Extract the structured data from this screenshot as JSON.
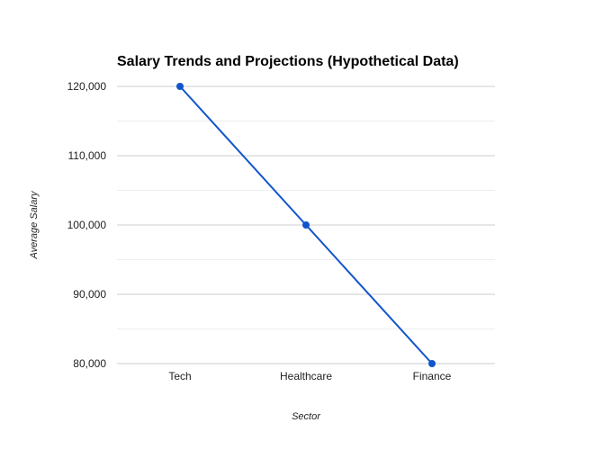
{
  "chart_data": {
    "type": "line",
    "title": "Salary Trends and Projections (Hypothetical Data)",
    "xlabel": "Sector",
    "ylabel": "Average Salary",
    "categories": [
      "Tech",
      "Healthcare",
      "Finance"
    ],
    "series": [
      {
        "values": [
          120000,
          100000,
          80000
        ]
      }
    ],
    "ylim": [
      80000,
      120000
    ],
    "y_ticks": [
      80000,
      90000,
      100000,
      110000,
      120000
    ],
    "y_tick_labels": [
      "80,000",
      "90,000",
      "100,000",
      "110,000",
      "120,000"
    ],
    "minor_gridlines": true,
    "grid": true,
    "legend": "none",
    "colors": {
      "series": "#1155cc",
      "grid_major": "#cccccc",
      "grid_minor": "#eeeeee"
    }
  }
}
